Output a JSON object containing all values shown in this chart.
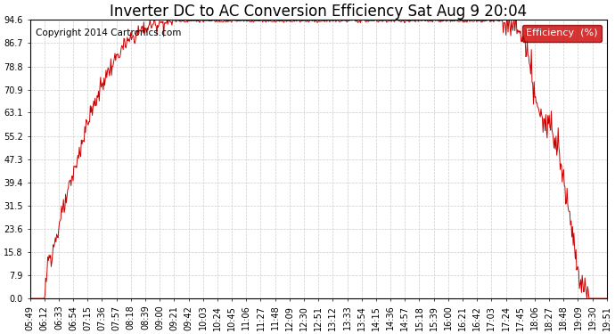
{
  "title": "Inverter DC to AC Conversion Efficiency Sat Aug 9 20:04",
  "copyright": "Copyright 2014 Cartronics.com",
  "legend_label": "Efficiency  (%)",
  "legend_bg": "#cc0000",
  "legend_fg": "#ffffff",
  "line_color": "#cc0000",
  "bg_color": "#ffffff",
  "grid_color": "#cccccc",
  "yticks": [
    0.0,
    7.9,
    15.8,
    23.6,
    31.5,
    39.4,
    47.3,
    55.2,
    63.1,
    70.9,
    78.8,
    86.7,
    94.6
  ],
  "xtick_labels": [
    "05:49",
    "06:12",
    "06:33",
    "06:54",
    "07:15",
    "07:36",
    "07:57",
    "08:18",
    "08:39",
    "09:00",
    "09:21",
    "09:42",
    "10:03",
    "10:24",
    "10:45",
    "11:06",
    "11:27",
    "11:48",
    "12:09",
    "12:30",
    "12:51",
    "13:12",
    "13:33",
    "13:54",
    "14:15",
    "14:36",
    "14:57",
    "15:18",
    "15:39",
    "16:00",
    "16:21",
    "16:42",
    "17:03",
    "17:24",
    "17:45",
    "18:06",
    "18:27",
    "18:48",
    "19:09",
    "19:30",
    "19:51"
  ],
  "ylim": [
    0.0,
    94.6
  ],
  "title_fontsize": 12,
  "copyright_fontsize": 7.5,
  "tick_fontsize": 7
}
